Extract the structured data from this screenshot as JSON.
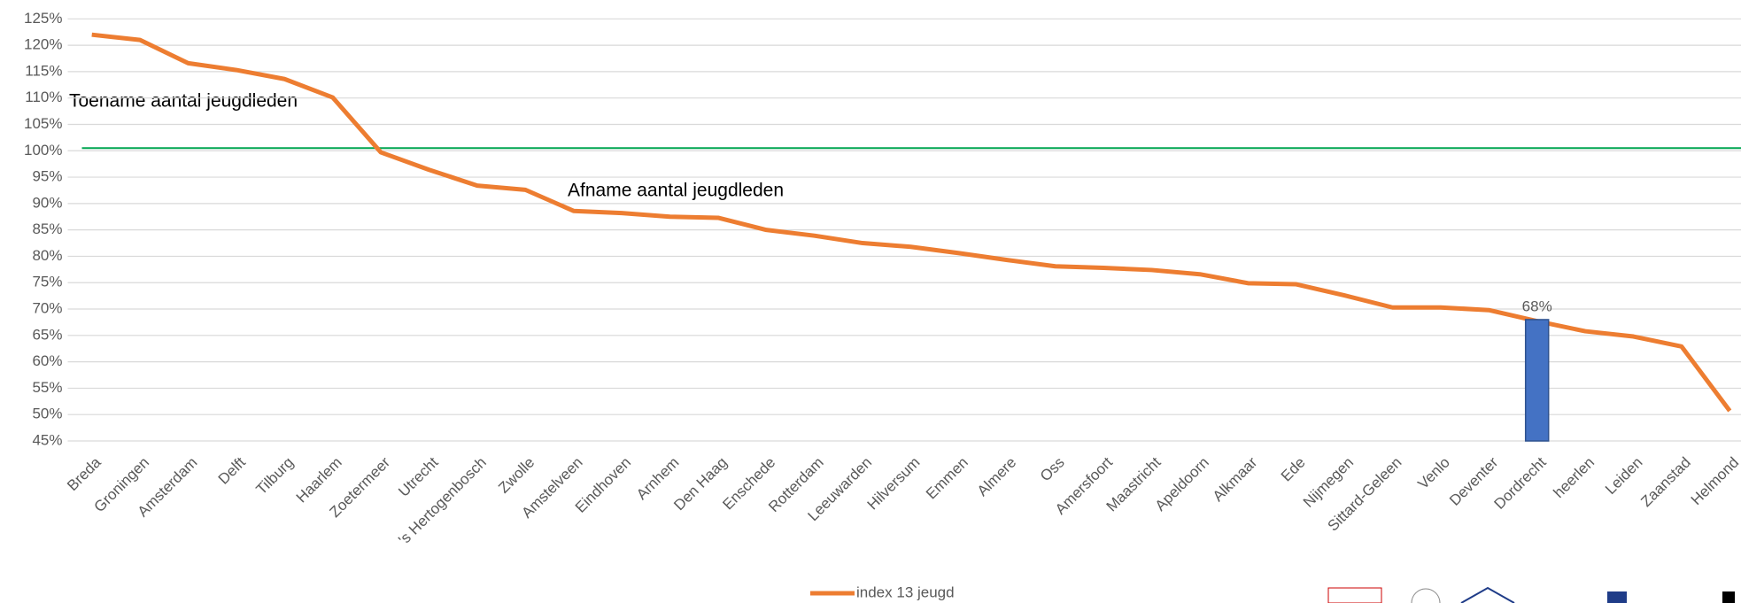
{
  "chart_data": {
    "type": "line",
    "categories": [
      "Breda",
      "Groningen",
      "Amsterdam",
      "Delft",
      "Tilburg",
      "Haarlem",
      "Zoetermeer",
      "Utrecht",
      "'s Hertogenbosch",
      "Zwolle",
      "Amstelveen",
      "Eindhoven",
      "Arnhem",
      "Den Haag",
      "Enschede",
      "Rotterdam",
      "Leeuwarden",
      "Hilversum",
      "Emmen",
      "Almere",
      "Oss",
      "Amersfoort",
      "Maastricht",
      "Apeldoorn",
      "Alkmaar",
      "Ede",
      "Nijmegen",
      "Sittard-Geleen",
      "Venlo",
      "Deventer",
      "Dordrecht",
      "heerlen",
      "Leiden",
      "Zaanstad",
      "Helmond"
    ],
    "series": [
      {
        "name": "index 13 jeugd",
        "color": "#ed7d31",
        "values": [
          122.0,
          121.0,
          116.6,
          115.3,
          113.6,
          110.1,
          99.7,
          96.4,
          93.4,
          92.6,
          88.6,
          88.2,
          87.5,
          87.3,
          85.0,
          83.9,
          82.5,
          81.8,
          80.6,
          79.3,
          78.1,
          77.8,
          77.4,
          76.6,
          74.9,
          74.7,
          72.6,
          70.3,
          70.3,
          69.8,
          67.7,
          65.8,
          64.8,
          62.9,
          50.7
        ]
      },
      {
        "type": "bar",
        "color": "#4472c4",
        "values": [
          null,
          null,
          null,
          null,
          null,
          null,
          null,
          null,
          null,
          null,
          null,
          null,
          null,
          null,
          null,
          null,
          null,
          null,
          null,
          null,
          null,
          null,
          null,
          null,
          null,
          null,
          null,
          null,
          null,
          null,
          68,
          null,
          null,
          null,
          null
        ],
        "value_labels": [
          null,
          null,
          null,
          null,
          null,
          null,
          null,
          null,
          null,
          null,
          null,
          null,
          null,
          null,
          null,
          null,
          null,
          null,
          null,
          null,
          null,
          null,
          null,
          null,
          null,
          null,
          null,
          null,
          null,
          null,
          "68%",
          null,
          null,
          null,
          null
        ]
      }
    ],
    "reference_line": {
      "value": 100.5,
      "color": "#00a651"
    },
    "annotations": [
      {
        "text": "Toename aantal jeugdleden"
      },
      {
        "text": "Afname aantal jeugdleden"
      }
    ],
    "ylim": [
      45,
      125
    ],
    "yticks": [
      {
        "value": 45,
        "label": "45%"
      },
      {
        "value": 50,
        "label": "50%"
      },
      {
        "value": 55,
        "label": "55%"
      },
      {
        "value": 60,
        "label": "60%"
      },
      {
        "value": 65,
        "label": "65%"
      },
      {
        "value": 70,
        "label": "70%"
      },
      {
        "value": 75,
        "label": "75%"
      },
      {
        "value": 80,
        "label": "80%"
      },
      {
        "value": 85,
        "label": "85%"
      },
      {
        "value": 90,
        "label": "90%"
      },
      {
        "value": 95,
        "label": "95%"
      },
      {
        "value": 100,
        "label": "100%"
      },
      {
        "value": 105,
        "label": "105%"
      },
      {
        "value": 110,
        "label": "110%"
      },
      {
        "value": 115,
        "label": "115%"
      },
      {
        "value": 120,
        "label": "120%"
      },
      {
        "value": 125,
        "label": "125%"
      }
    ],
    "grid": true,
    "legend": "bottom"
  }
}
